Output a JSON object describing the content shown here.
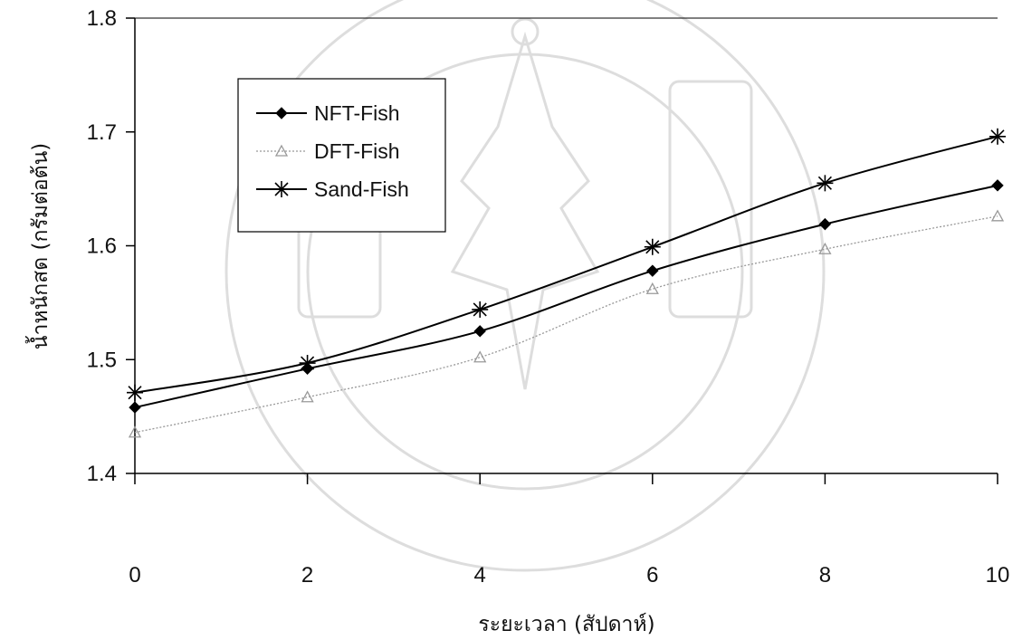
{
  "chart_data": {
    "type": "line",
    "x": [
      0,
      2,
      4,
      6,
      8,
      10
    ],
    "xlabel": "ระยะเวลา (สัปดาห์)",
    "ylabel": "น้ำหนักสด (กรัมต่อต้น)",
    "ylim": [
      1.4,
      1.8
    ],
    "yticks": [
      "1.4",
      "1.5",
      "1.6",
      "1.7",
      "1.8"
    ],
    "xticks": [
      "0",
      "2",
      "4",
      "6",
      "8",
      "10"
    ],
    "grid": false,
    "legend_position": "top-left",
    "series": [
      {
        "name": "NFT-Fish",
        "values": [
          1.458,
          1.492,
          1.525,
          1.578,
          1.619,
          1.653
        ],
        "marker": "diamond",
        "color": "#000000",
        "style": "solid"
      },
      {
        "name": "DFT-Fish",
        "values": [
          1.436,
          1.467,
          1.502,
          1.562,
          1.597,
          1.626
        ],
        "marker": "triangle",
        "color": "#999999",
        "style": "dotted"
      },
      {
        "name": "Sand-Fish",
        "values": [
          1.471,
          1.497,
          1.544,
          1.599,
          1.655,
          1.696
        ],
        "marker": "asterisk",
        "color": "#000000",
        "style": "solid"
      }
    ]
  }
}
